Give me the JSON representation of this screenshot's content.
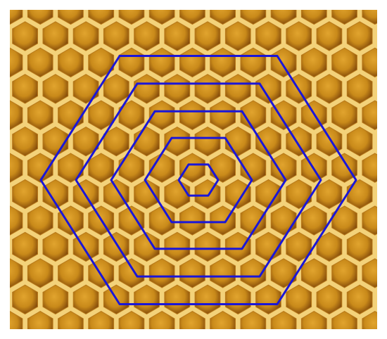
{
  "photo": {
    "subject": "honeycomb",
    "comb_wall_color": "#f3d27a",
    "cell_shadow_color": "#7a4208",
    "cell_mid_color": "#c98a1a",
    "cell_light_color": "#e1a42e",
    "border_color": "#ffffff"
  },
  "overlay": {
    "shape": "regular hexagon",
    "orientation": "flat-top",
    "stroke_color": "#1a16d8",
    "count": 5,
    "arrangement": "concentric"
  }
}
